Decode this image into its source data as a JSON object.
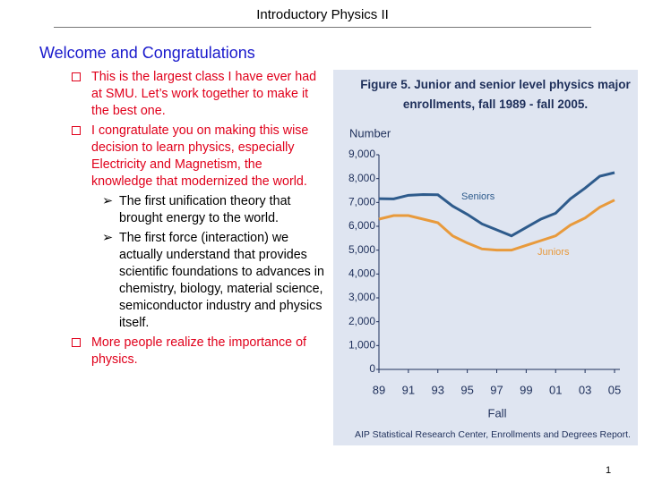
{
  "header": {
    "title": "Introductory Physics II"
  },
  "heading": "Welcome and Congratulations",
  "bullets": [
    {
      "level": 1,
      "color": "#e0001b",
      "text": "This is the largest class I have ever had at SMU. Let’s work together to make it the best one."
    },
    {
      "level": 1,
      "color": "#e0001b",
      "text": "I congratulate you on making this wise decision to learn physics, especially Electricity and Magnetism, the knowledge that modernized the world."
    },
    {
      "level": 2,
      "color": "#000000",
      "text": "The first unification theory that brought energy to the world."
    },
    {
      "level": 2,
      "color": "#000000",
      "text": "The first force (interaction) we actually understand that provides scientific foundations to advances in chemistry, biology, material science, semiconductor industry and physics itself."
    },
    {
      "level": 1,
      "color": "#e0001b",
      "text": "More people realize the importance of physics."
    }
  ],
  "page_number": "1",
  "chart_data": {
    "type": "line",
    "title": "Figure 5.  Junior and senior level physics major enrollments, fall 1989 - fall 2005.",
    "y_label": "Number",
    "x_label": "Fall",
    "source": "AIP Statistical Research Center, Enrollments and Degrees Report.",
    "x": [
      1989,
      1990,
      1991,
      1992,
      1993,
      1994,
      1995,
      1996,
      1997,
      1998,
      1999,
      2000,
      2001,
      2002,
      2003,
      2004,
      2005
    ],
    "series": [
      {
        "name": "Seniors",
        "color": "#2e5b8c",
        "values": [
          7160,
          7150,
          7300,
          7330,
          7320,
          6850,
          6500,
          6100,
          5850,
          5600,
          5950,
          6300,
          6550,
          7150,
          7600,
          8100,
          8250
        ]
      },
      {
        "name": "Juniors",
        "color": "#e89a3c",
        "values": [
          6300,
          6450,
          6450,
          6300,
          6150,
          5600,
          5300,
          5050,
          5000,
          5000,
          5200,
          5400,
          5600,
          6050,
          6350,
          6800,
          7100
        ]
      }
    ],
    "xlim": [
      1989,
      2005
    ],
    "xticks": [
      {
        "value": 1989,
        "label": "89"
      },
      {
        "value": 1991,
        "label": "91"
      },
      {
        "value": 1993,
        "label": "93"
      },
      {
        "value": 1995,
        "label": "95"
      },
      {
        "value": 1997,
        "label": "97"
      },
      {
        "value": 1999,
        "label": "99"
      },
      {
        "value": 2001,
        "label": "01"
      },
      {
        "value": 2003,
        "label": "03"
      },
      {
        "value": 2005,
        "label": "05"
      }
    ],
    "ylim": [
      0,
      9000
    ],
    "yticks": [
      0,
      {
        "value": 1000,
        "label": "1,000"
      },
      {
        "value": 2000,
        "label": "2,000"
      },
      {
        "value": 3000,
        "label": "3,000"
      },
      {
        "value": 4000,
        "label": "4,000"
      },
      {
        "value": 5000,
        "label": "5,000"
      },
      {
        "value": 6000,
        "label": "6,000"
      },
      {
        "value": 7000,
        "label": "7,000"
      },
      {
        "value": 8000,
        "label": "8,000"
      },
      {
        "value": 9000,
        "label": "9,000"
      }
    ]
  }
}
